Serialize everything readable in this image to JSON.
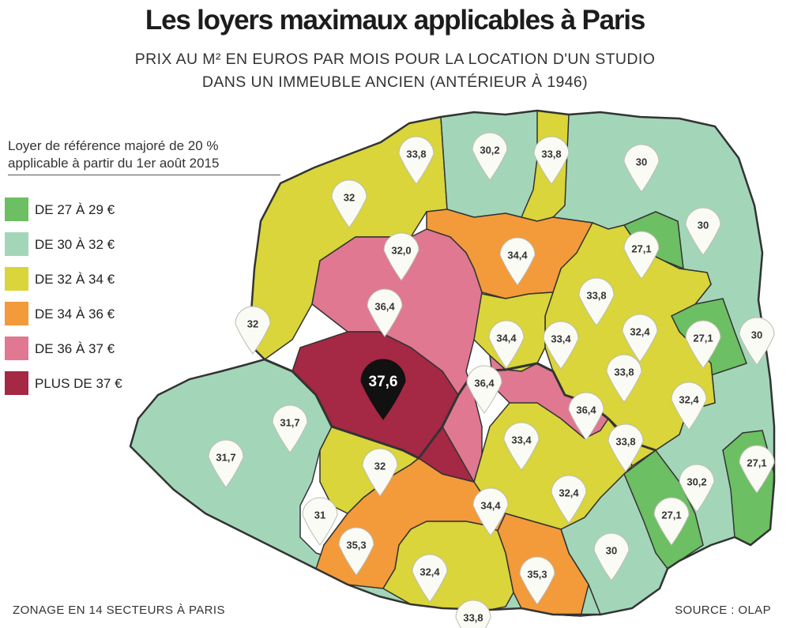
{
  "title": "Les loyers maximaux applicables à Paris",
  "subtitle_line1": "PRIX AU M² EN EUROS PAR MOIS POUR LA LOCATION D'UN STUDIO",
  "subtitle_line2": "DANS UN IMMEUBLE ANCIEN (ANTÉRIEUR À 1946)",
  "legend_heading_line1": "Loyer de référence majoré de 20 %",
  "legend_heading_line2": "applicable à partir du 1er août 2015",
  "legend": [
    {
      "label": "DE 27 À 29 €",
      "color": "#6cbf62"
    },
    {
      "label": "DE 30 À 32 €",
      "color": "#a3d6b8"
    },
    {
      "label": "DE 32 À 34 €",
      "color": "#d9d53a"
    },
    {
      "label": "DE 34 À 36 €",
      "color": "#f39a3a"
    },
    {
      "label": "DE 36 À 37 €",
      "color": "#df7890"
    },
    {
      "label": "PLUS DE 37 €",
      "color": "#a52844"
    }
  ],
  "markers": [
    {
      "value": "33,8",
      "band": 2
    },
    {
      "value": "30,2",
      "band": 1
    },
    {
      "value": "33,8",
      "band": 2
    },
    {
      "value": "30",
      "band": 1
    },
    {
      "value": "32",
      "band": 2
    },
    {
      "value": "30",
      "band": 1
    },
    {
      "value": "27,1",
      "band": 0
    },
    {
      "value": "32,0",
      "band": 2
    },
    {
      "value": "34,4",
      "band": 3
    },
    {
      "value": "33,8",
      "band": 2
    },
    {
      "value": "36,4",
      "band": 4
    },
    {
      "value": "32",
      "band": 2
    },
    {
      "value": "34,4",
      "band": 3
    },
    {
      "value": "33,4",
      "band": 2
    },
    {
      "value": "32,4",
      "band": 2
    },
    {
      "value": "27,1",
      "band": 0
    },
    {
      "value": "30",
      "band": 1
    },
    {
      "value": "37,6",
      "band": 5,
      "highlight": true
    },
    {
      "value": "36,4",
      "band": 4
    },
    {
      "value": "33,8",
      "band": 2
    },
    {
      "value": "32,4",
      "band": 2
    },
    {
      "value": "31,7",
      "band": 1
    },
    {
      "value": "36,4",
      "band": 4
    },
    {
      "value": "33,4",
      "band": 2
    },
    {
      "value": "33,8",
      "band": 2
    },
    {
      "value": "31,7",
      "band": 1
    },
    {
      "value": "32",
      "band": 2
    },
    {
      "value": "32,4",
      "band": 2
    },
    {
      "value": "27,1",
      "band": 0
    },
    {
      "value": "30,2",
      "band": 1
    },
    {
      "value": "31",
      "band": 1
    },
    {
      "value": "34,4",
      "band": 3
    },
    {
      "value": "27,1",
      "band": 0
    },
    {
      "value": "35,3",
      "band": 3
    },
    {
      "value": "32,4",
      "band": 2
    },
    {
      "value": "30",
      "band": 1
    },
    {
      "value": "35,3",
      "band": 3
    },
    {
      "value": "33,8",
      "band": 2
    }
  ],
  "footer_left": "ZONAGE EN 14 SECTEURS À PARIS",
  "footer_right": "SOURCE : OLAP"
}
